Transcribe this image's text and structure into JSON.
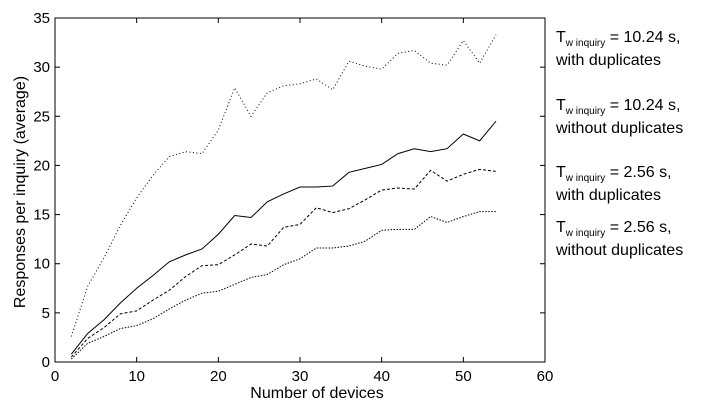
{
  "chart_data": {
    "type": "line",
    "xlabel": "Number of devices",
    "ylabel": "Responses per inquiry (average)",
    "xlim": [
      0,
      60
    ],
    "ylim": [
      0,
      35
    ],
    "xticks": [
      0,
      10,
      20,
      30,
      40,
      50,
      60
    ],
    "yticks": [
      0,
      5,
      10,
      15,
      20,
      25,
      30,
      35
    ],
    "grid": false,
    "legend_placement": "right, outside plot",
    "x": [
      2,
      4,
      6,
      8,
      10,
      12,
      14,
      16,
      18,
      20,
      22,
      24,
      26,
      28,
      30,
      32,
      34,
      36,
      38,
      40,
      42,
      44,
      46,
      48,
      50,
      52,
      54
    ],
    "series": [
      {
        "name": "T_w inquiry = 10.24 s, with duplicates",
        "legend_main": "T",
        "legend_sub": "w inquiry",
        "legend_rest": " = 10.24 s,",
        "legend_line2": "with duplicates",
        "style": "dotted-sparse",
        "values": [
          2.6,
          7.7,
          10.6,
          13.9,
          16.7,
          19.0,
          20.9,
          21.4,
          21.2,
          23.6,
          27.9,
          25.0,
          27.4,
          28.1,
          28.3,
          28.8,
          27.7,
          30.6,
          30.1,
          29.8,
          31.4,
          31.7,
          30.4,
          30.2,
          32.7,
          30.4,
          33.3
        ]
      },
      {
        "name": "T_w inquiry = 10.24 s, without duplicates",
        "legend_main": "T",
        "legend_sub": "w inquiry",
        "legend_rest": " = 10.24 s,",
        "legend_line2": "without duplicates",
        "style": "solid",
        "values": [
          0.8,
          2.9,
          4.3,
          6.0,
          7.5,
          8.8,
          10.2,
          10.9,
          11.5,
          13.0,
          14.9,
          14.7,
          16.3,
          17.1,
          17.8,
          17.8,
          17.9,
          19.3,
          19.7,
          20.1,
          21.2,
          21.7,
          21.4,
          21.7,
          23.2,
          22.5,
          24.5
        ]
      },
      {
        "name": "T_w inquiry = 2.56 s, with duplicates",
        "legend_main": "T",
        "legend_sub": "w inquiry",
        "legend_rest": " = 2.56 s,",
        "legend_line2": "with duplicates",
        "style": "dashed",
        "values": [
          0.5,
          2.4,
          3.5,
          4.9,
          5.2,
          6.3,
          7.3,
          8.7,
          9.8,
          9.9,
          10.9,
          12.0,
          11.8,
          13.7,
          14.0,
          15.7,
          15.2,
          15.6,
          16.5,
          17.5,
          17.7,
          17.6,
          19.5,
          18.4,
          19.1,
          19.6,
          19.4
        ]
      },
      {
        "name": "T_w inquiry = 2.56 s, without duplicates",
        "legend_main": "T",
        "legend_sub": "w inquiry",
        "legend_rest": " = 2.56 s,",
        "legend_line2": "without duplicates",
        "style": "dotted-dense",
        "values": [
          0.3,
          1.9,
          2.6,
          3.4,
          3.7,
          4.4,
          5.4,
          6.3,
          7.0,
          7.2,
          7.9,
          8.6,
          8.9,
          9.9,
          10.5,
          11.6,
          11.6,
          11.8,
          12.3,
          13.4,
          13.5,
          13.5,
          14.8,
          14.2,
          14.8,
          15.3,
          15.3
        ]
      }
    ]
  }
}
